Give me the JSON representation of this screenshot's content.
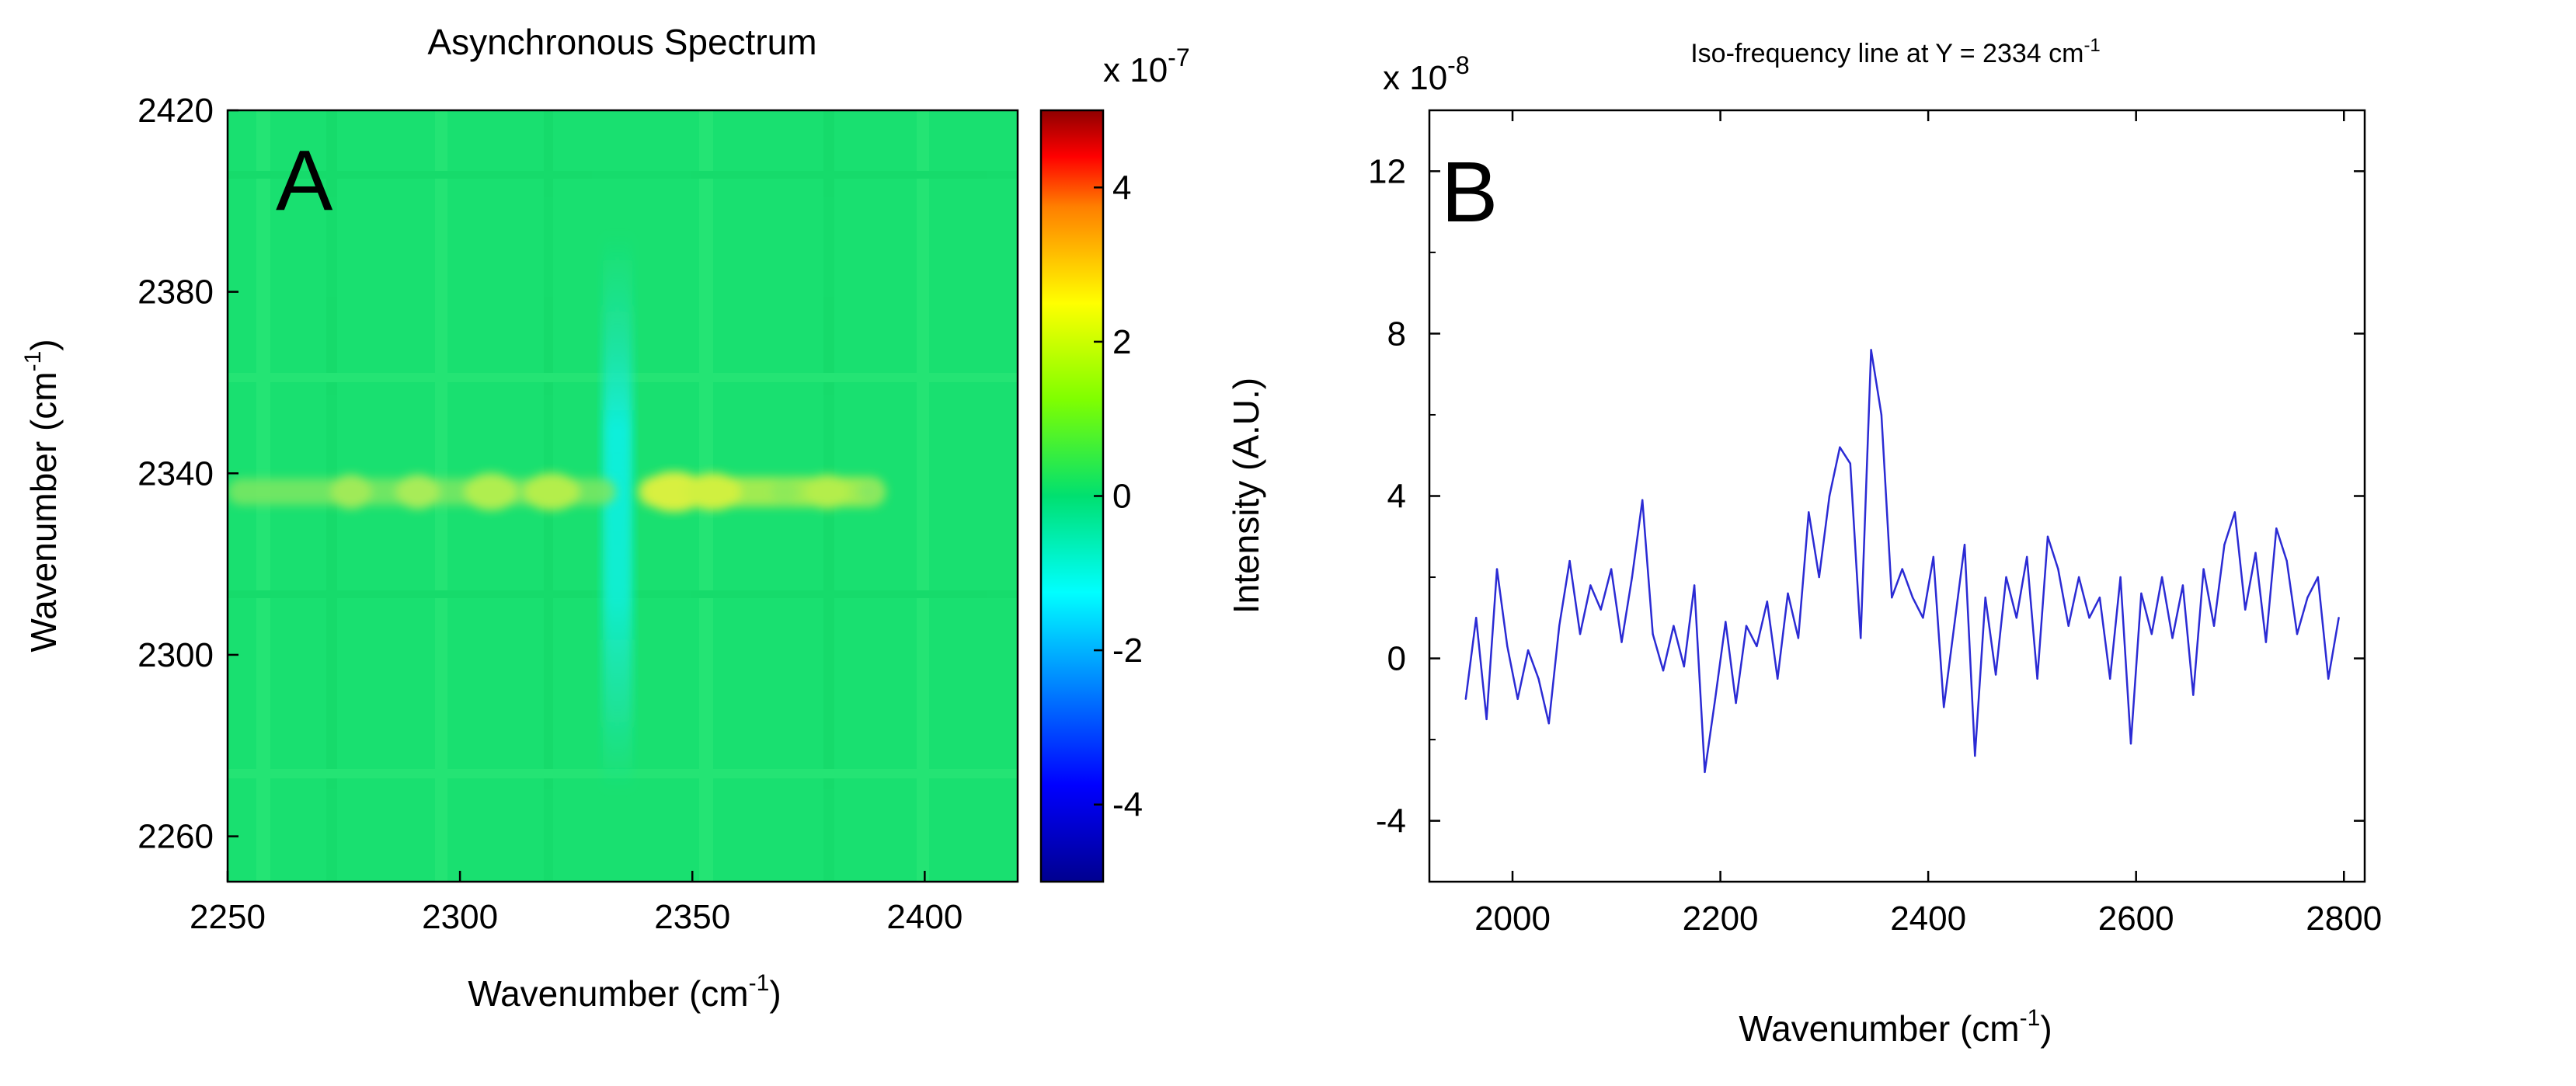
{
  "panel_a": {
    "title": "Asynchronous Spectrum",
    "panel_letter": "A",
    "xlabel_main": "Wavenumber (cm",
    "xlabel_sup": "-1",
    "xlabel_end": ")",
    "ylabel_main": "Wavenumber (cm",
    "ylabel_sup": "-1",
    "ylabel_end": ")",
    "colorbar_exp_main": "x 10",
    "colorbar_exp_sup": "-7"
  },
  "panel_b": {
    "title": "Iso-frequency line at Y = 2334 cm",
    "title_sup": "-1",
    "panel_letter": "B",
    "xlabel_main": "Wavenumber (cm",
    "xlabel_sup": "-1",
    "xlabel_end": ")",
    "ylabel": "Intensity (A.U.)",
    "yexp_main": "x 10",
    "yexp_sup": "-8",
    "line_color": "#2b2bd4"
  },
  "chart_data": [
    {
      "type": "heatmap",
      "title": "Asynchronous Spectrum",
      "xlabel": "Wavenumber (cm-1)",
      "ylabel": "Wavenumber (cm-1)",
      "xlim": [
        2250,
        2420
      ],
      "ylim": [
        2250,
        2420
      ],
      "xticks": [
        2250,
        2300,
        2350,
        2400
      ],
      "yticks": [
        2260,
        2300,
        2340,
        2380,
        2420
      ],
      "colorbar": {
        "range": [
          -5,
          5
        ],
        "ticks": [
          -4,
          -2,
          0,
          2,
          4
        ],
        "exponent": "x 10^-7",
        "colormap": "jet"
      },
      "features": [
        {
          "kind": "horizontal-band",
          "y": 2336,
          "x_range": [
            2250,
            2392
          ],
          "value": 0.8
        },
        {
          "kind": "vertical-band",
          "x": 2336,
          "y_range": [
            2270,
            2380
          ],
          "value": -1.0
        }
      ],
      "background_value": 0
    },
    {
      "type": "line",
      "title": "Iso-frequency line at Y = 2334 cm-1",
      "xlabel": "Wavenumber (cm-1)",
      "ylabel": "Intensity (A.U.)",
      "y_exponent": "x 10^-8",
      "xlim": [
        1920,
        2820
      ],
      "ylim": [
        -5.5,
        13.5
      ],
      "xticks": [
        2000,
        2200,
        2400,
        2600,
        2800
      ],
      "yticks": [
        -4,
        0,
        4,
        8,
        12
      ],
      "x": [
        1955,
        1965,
        1975,
        1985,
        1995,
        2005,
        2015,
        2025,
        2035,
        2045,
        2055,
        2065,
        2075,
        2085,
        2095,
        2105,
        2115,
        2125,
        2135,
        2145,
        2155,
        2165,
        2175,
        2185,
        2195,
        2205,
        2215,
        2225,
        2235,
        2245,
        2255,
        2265,
        2275,
        2285,
        2295,
        2305,
        2315,
        2325,
        2335,
        2345,
        2355,
        2365,
        2375,
        2385,
        2395,
        2405,
        2415,
        2425,
        2435,
        2445,
        2455,
        2465,
        2475,
        2485,
        2495,
        2505,
        2515,
        2525,
        2535,
        2545,
        2555,
        2565,
        2575,
        2585,
        2595,
        2605,
        2615,
        2625,
        2635,
        2645,
        2655,
        2665,
        2675,
        2685,
        2695,
        2705,
        2715,
        2725,
        2735,
        2745,
        2755,
        2765,
        2775,
        2785,
        2795
      ],
      "values": [
        -1.0,
        1.0,
        -1.5,
        2.2,
        0.3,
        -1.0,
        0.2,
        -0.5,
        -1.6,
        0.8,
        2.4,
        0.6,
        1.8,
        1.2,
        2.2,
        0.4,
        2.0,
        3.9,
        0.6,
        -0.3,
        0.8,
        -0.2,
        1.8,
        -2.8,
        -1.0,
        0.9,
        -1.1,
        0.8,
        0.3,
        1.4,
        -0.5,
        1.6,
        0.5,
        3.6,
        2.0,
        4.0,
        5.2,
        4.8,
        0.5,
        7.6,
        6.0,
        1.5,
        2.2,
        1.5,
        1.0,
        2.5,
        -1.2,
        0.8,
        2.8,
        -2.4,
        1.5,
        -0.4,
        2.0,
        1.0,
        2.5,
        -0.5,
        3.0,
        2.2,
        0.8,
        2.0,
        1.0,
        1.5,
        -0.5,
        2.0,
        -2.1,
        1.6,
        0.6,
        2.0,
        0.5,
        1.8,
        -0.9,
        2.2,
        0.8,
        2.8,
        3.6,
        1.2,
        2.6,
        0.4,
        3.2,
        2.4,
        0.6,
        1.5,
        2.0,
        -0.5,
        1.0
      ]
    }
  ]
}
